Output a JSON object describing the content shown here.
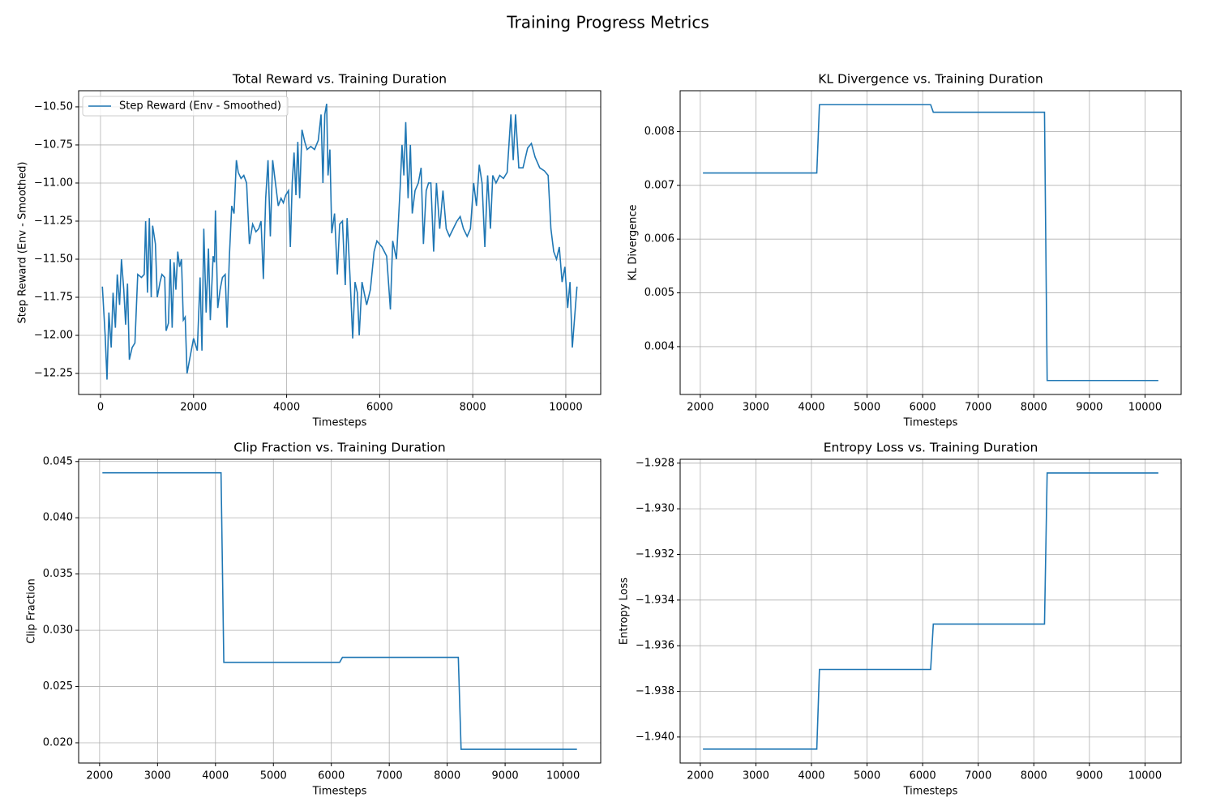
{
  "title": "Training Progress Metrics",
  "chart_data": [
    {
      "type": "line",
      "title": "Total Reward vs. Training Duration",
      "xlabel": "Timesteps",
      "ylabel": "Step Reward (Env - Smoothed)",
      "grid": true,
      "legend": "upper left",
      "x": [
        40,
        100,
        140,
        180,
        230,
        270,
        320,
        360,
        410,
        450,
        500,
        540,
        580,
        620,
        680,
        740,
        800,
        880,
        940,
        970,
        1010,
        1050,
        1090,
        1120,
        1180,
        1220,
        1280,
        1320,
        1380,
        1410,
        1460,
        1500,
        1540,
        1580,
        1620,
        1660,
        1700,
        1740,
        1780,
        1820,
        1860,
        1920,
        2000,
        2080,
        2140,
        2180,
        2220,
        2270,
        2320,
        2360,
        2420,
        2450,
        2470,
        2520,
        2570,
        2620,
        2680,
        2720,
        2770,
        2820,
        2870,
        2920,
        2960,
        3020,
        3080,
        3140,
        3200,
        3270,
        3340,
        3400,
        3450,
        3500,
        3550,
        3600,
        3650,
        3700,
        3760,
        3820,
        3880,
        3930,
        3980,
        4040,
        4080,
        4120,
        4160,
        4200,
        4240,
        4280,
        4330,
        4390,
        4440,
        4520,
        4600,
        4680,
        4740,
        4780,
        4820,
        4860,
        4890,
        4930,
        4970,
        5030,
        5090,
        5140,
        5200,
        5260,
        5300,
        5360,
        5420,
        5470,
        5520,
        5560,
        5620,
        5720,
        5800,
        5880,
        5940,
        6050,
        6150,
        6230,
        6280,
        6360,
        6440,
        6480,
        6520,
        6560,
        6610,
        6660,
        6700,
        6760,
        6830,
        6890,
        6940,
        7000,
        7050,
        7100,
        7160,
        7220,
        7290,
        7360,
        7430,
        7500,
        7580,
        7660,
        7730,
        7800,
        7880,
        7950,
        8020,
        8080,
        8140,
        8200,
        8260,
        8320,
        8380,
        8430,
        8500,
        8580,
        8660,
        8740,
        8820,
        8870,
        8920,
        8990,
        9080,
        9180,
        9260,
        9340,
        9440,
        9540,
        9620,
        9680,
        9740,
        9800,
        9860,
        9920,
        9980,
        10040,
        10090,
        10140,
        10190,
        10240
      ],
      "series": [
        {
          "name": "Step Reward (Env - Smoothed)",
          "color": "#1f77b4",
          "values": [
            -11.68,
            -12.0,
            -12.29,
            -11.85,
            -12.08,
            -11.72,
            -11.95,
            -11.6,
            -11.8,
            -11.5,
            -11.7,
            -11.93,
            -11.66,
            -12.16,
            -12.08,
            -12.05,
            -11.6,
            -11.62,
            -11.6,
            -11.25,
            -11.72,
            -11.23,
            -11.75,
            -11.28,
            -11.4,
            -11.75,
            -11.65,
            -11.6,
            -11.62,
            -11.97,
            -11.92,
            -11.5,
            -11.95,
            -11.52,
            -11.7,
            -11.45,
            -11.55,
            -11.5,
            -11.9,
            -11.88,
            -12.25,
            -12.15,
            -12.02,
            -12.1,
            -11.62,
            -12.1,
            -11.3,
            -11.85,
            -11.43,
            -11.9,
            -11.48,
            -11.52,
            -11.18,
            -11.82,
            -11.7,
            -11.62,
            -11.6,
            -11.95,
            -11.48,
            -11.15,
            -11.2,
            -10.85,
            -10.93,
            -10.97,
            -10.95,
            -11.0,
            -11.4,
            -11.27,
            -11.32,
            -11.3,
            -11.25,
            -11.63,
            -11.1,
            -10.85,
            -11.35,
            -10.85,
            -11.0,
            -11.15,
            -11.1,
            -11.13,
            -11.08,
            -11.05,
            -11.42,
            -11.0,
            -10.8,
            -11.08,
            -10.73,
            -11.1,
            -10.65,
            -10.73,
            -10.78,
            -10.76,
            -10.78,
            -10.72,
            -10.55,
            -11.0,
            -10.55,
            -10.48,
            -10.95,
            -10.78,
            -11.33,
            -11.2,
            -11.6,
            -11.27,
            -11.25,
            -11.67,
            -11.23,
            -11.6,
            -12.02,
            -11.65,
            -11.72,
            -12.0,
            -11.65,
            -11.8,
            -11.7,
            -11.45,
            -11.38,
            -11.42,
            -11.48,
            -11.83,
            -11.38,
            -11.5,
            -11.03,
            -10.75,
            -10.95,
            -10.6,
            -11.1,
            -10.75,
            -11.2,
            -11.05,
            -11.0,
            -10.9,
            -11.4,
            -11.05,
            -11.0,
            -11.0,
            -11.45,
            -11.0,
            -11.3,
            -11.05,
            -11.3,
            -11.35,
            -11.3,
            -11.25,
            -11.22,
            -11.3,
            -11.35,
            -11.3,
            -11.0,
            -11.15,
            -10.88,
            -11.0,
            -11.42,
            -10.95,
            -11.3,
            -10.95,
            -11.0,
            -10.95,
            -10.97,
            -10.93,
            -10.55,
            -10.85,
            -10.55,
            -10.9,
            -10.9,
            -10.77,
            -10.74,
            -10.83,
            -10.9,
            -10.92,
            -10.95,
            -11.3,
            -11.45,
            -11.5,
            -11.42,
            -11.65,
            -11.55,
            -11.82,
            -11.65,
            -12.08,
            -11.88,
            -11.68
          ]
        }
      ],
      "xlim": [
        -470,
        10750
      ],
      "xticks": [
        0,
        2000,
        4000,
        6000,
        8000,
        10000
      ],
      "ylim": [
        -12.388,
        -10.394
      ],
      "yticks": [
        {
          "value": -12.25,
          "label": "−12.25"
        },
        {
          "value": -12.0,
          "label": "−12.00"
        },
        {
          "value": -11.75,
          "label": "−11.75"
        },
        {
          "value": -11.5,
          "label": "−11.50"
        },
        {
          "value": -11.25,
          "label": "−11.25"
        },
        {
          "value": -11.0,
          "label": "−11.00"
        },
        {
          "value": -10.75,
          "label": "−10.75"
        },
        {
          "value": -10.5,
          "label": "−10.50"
        }
      ]
    },
    {
      "type": "line",
      "title": "KL Divergence vs. Training Duration",
      "xlabel": "Timesteps",
      "ylabel": "KL Divergence",
      "grid": true,
      "color": "#1f77b4",
      "x": [
        2048,
        4096,
        4144,
        6144,
        6192,
        8192,
        8240,
        10240
      ],
      "values": [
        0.00723,
        0.00723,
        0.0085,
        0.0085,
        0.00836,
        0.00836,
        0.00337,
        0.00337
      ],
      "xlim": [
        1638,
        10650
      ],
      "xticks": [
        2000,
        3000,
        4000,
        5000,
        6000,
        7000,
        8000,
        9000,
        10000
      ],
      "ylim": [
        0.00311,
        0.00876
      ],
      "yticks": [
        0.004,
        0.005,
        0.006,
        0.007,
        0.008
      ]
    },
    {
      "type": "line",
      "title": "Clip Fraction vs. Training Duration",
      "xlabel": "Timesteps",
      "ylabel": "Clip Fraction",
      "grid": true,
      "color": "#1f77b4",
      "x": [
        2048,
        4096,
        4144,
        6144,
        6192,
        8192,
        8240,
        10240
      ],
      "values": [
        0.044,
        0.044,
        0.02715,
        0.02715,
        0.02759,
        0.02759,
        0.01942,
        0.01942
      ],
      "xlim": [
        1638,
        10650
      ],
      "xticks": [
        2000,
        3000,
        4000,
        5000,
        6000,
        7000,
        8000,
        9000,
        10000
      ],
      "ylim": [
        0.0182,
        0.0452
      ],
      "yticks": [
        {
          "value": 0.02,
          "label": "0.020"
        },
        {
          "value": 0.025,
          "label": "0.025"
        },
        {
          "value": 0.03,
          "label": "0.030"
        },
        {
          "value": 0.035,
          "label": "0.035"
        },
        {
          "value": 0.04,
          "label": "0.040"
        },
        {
          "value": 0.045,
          "label": "0.045"
        }
      ]
    },
    {
      "type": "line",
      "title": "Entropy Loss vs. Training Duration",
      "xlabel": "Timesteps",
      "ylabel": "Entropy Loss",
      "grid": true,
      "color": "#1f77b4",
      "x": [
        2048,
        4096,
        4144,
        6144,
        6192,
        8192,
        8240,
        10240
      ],
      "values": [
        -1.94053,
        -1.94053,
        -1.93704,
        -1.93704,
        -1.93505,
        -1.93505,
        -1.92843,
        -1.92843
      ],
      "xlim": [
        1638,
        10650
      ],
      "xticks": [
        2000,
        3000,
        4000,
        5000,
        6000,
        7000,
        8000,
        9000,
        10000
      ],
      "ylim": [
        -1.94114,
        -1.92783
      ],
      "yticks": [
        {
          "value": -1.94,
          "label": "−1.940"
        },
        {
          "value": -1.938,
          "label": "−1.938"
        },
        {
          "value": -1.936,
          "label": "−1.936"
        },
        {
          "value": -1.934,
          "label": "−1.934"
        },
        {
          "value": -1.932,
          "label": "−1.932"
        },
        {
          "value": -1.93,
          "label": "−1.930"
        },
        {
          "value": -1.928,
          "label": "−1.928"
        }
      ]
    }
  ]
}
